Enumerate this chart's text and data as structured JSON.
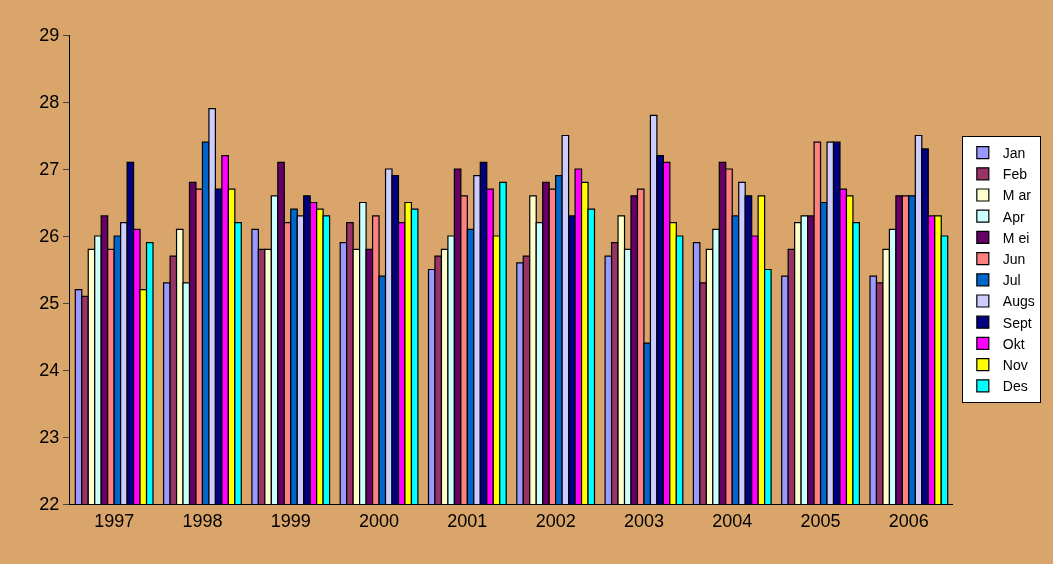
{
  "chart_data": {
    "type": "bar",
    "categories": [
      "1997",
      "1998",
      "1999",
      "2000",
      "2001",
      "2002",
      "2003",
      "2004",
      "2005",
      "2006"
    ],
    "series": [
      {
        "name": "Jan",
        "color": "#9999ff",
        "values": [
          25.2,
          25.3,
          26.1,
          25.9,
          25.5,
          25.6,
          25.7,
          25.9,
          25.4,
          25.4
        ]
      },
      {
        "name": "Feb",
        "color": "#993366",
        "values": [
          25.1,
          25.7,
          25.8,
          26.2,
          25.7,
          25.7,
          25.9,
          25.3,
          25.8,
          25.3
        ]
      },
      {
        "name": "M ar",
        "color": "#ffffcc",
        "values": [
          25.8,
          26.1,
          25.8,
          25.8,
          25.8,
          26.6,
          26.3,
          25.8,
          26.2,
          25.8
        ]
      },
      {
        "name": "Apr",
        "color": "#ccffff",
        "values": [
          26.0,
          25.3,
          26.6,
          26.5,
          26.0,
          26.2,
          25.8,
          26.1,
          26.3,
          26.1
        ]
      },
      {
        "name": "M ei",
        "color": "#660066",
        "values": [
          26.3,
          26.8,
          27.1,
          25.8,
          27.0,
          26.8,
          26.6,
          27.1,
          26.3,
          26.6
        ]
      },
      {
        "name": "Jun",
        "color": "#ff8080",
        "values": [
          25.8,
          26.7,
          26.2,
          26.3,
          26.6,
          26.7,
          26.7,
          27.0,
          27.4,
          26.6
        ]
      },
      {
        "name": "Jul",
        "color": "#0066cc",
        "values": [
          26.0,
          27.4,
          26.4,
          25.4,
          26.1,
          26.9,
          24.4,
          26.3,
          26.5,
          26.6
        ]
      },
      {
        "name": "Augs",
        "color": "#ccccff",
        "values": [
          26.2,
          27.9,
          26.3,
          27.0,
          26.9,
          27.5,
          27.8,
          26.8,
          27.4,
          27.5
        ]
      },
      {
        "name": "Sept",
        "color": "#000080",
        "values": [
          27.1,
          26.7,
          26.6,
          26.9,
          27.1,
          26.3,
          27.2,
          26.6,
          27.4,
          27.3
        ]
      },
      {
        "name": "Okt",
        "color": "#ff00ff",
        "values": [
          26.1,
          27.2,
          26.5,
          26.2,
          26.7,
          27.0,
          27.1,
          26.0,
          26.7,
          26.3
        ]
      },
      {
        "name": "Nov",
        "color": "#ffff00",
        "values": [
          25.2,
          26.7,
          26.4,
          26.5,
          26.0,
          26.8,
          26.2,
          26.6,
          26.6,
          26.3
        ]
      },
      {
        "name": "Des",
        "color": "#00ffff",
        "values": [
          25.9,
          26.2,
          26.3,
          26.4,
          26.8,
          26.4,
          26.0,
          25.5,
          26.2,
          26.0
        ]
      }
    ],
    "ylim": [
      22,
      29
    ],
    "yticks": [
      22,
      23,
      24,
      25,
      26,
      27,
      28,
      29
    ],
    "grid": false,
    "legend": "right"
  }
}
